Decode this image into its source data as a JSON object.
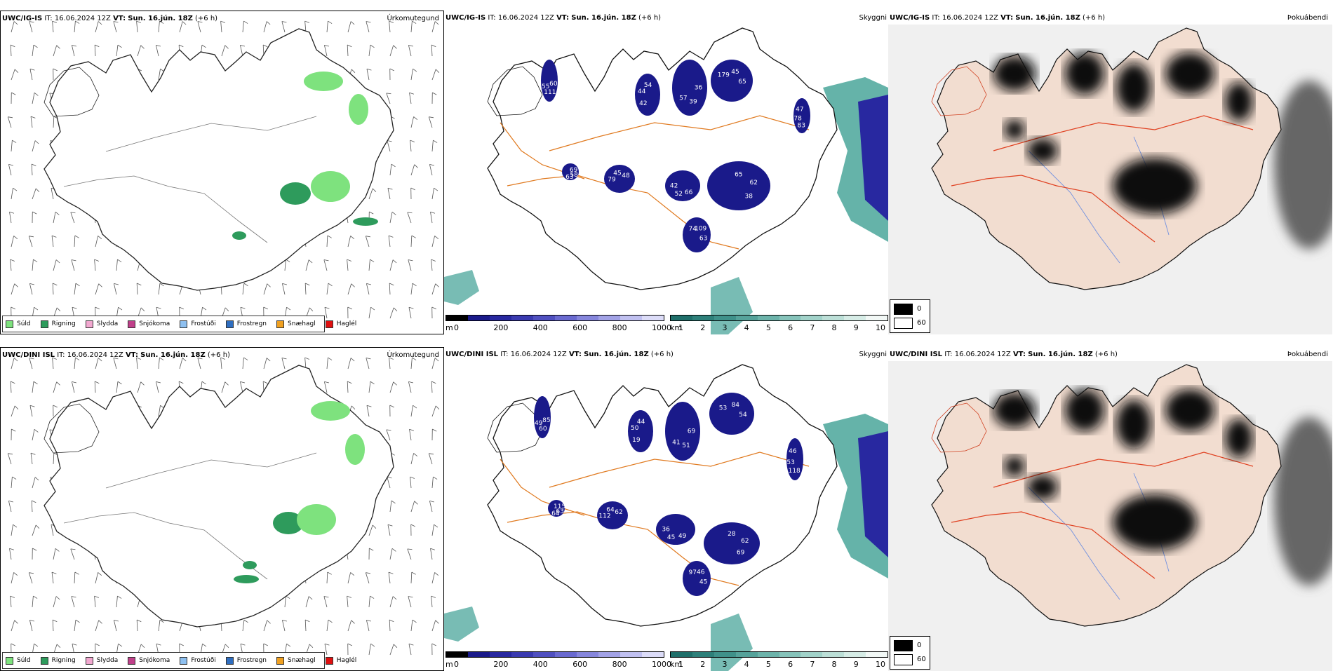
{
  "rows": [
    {
      "model": "UWC/IG-IS",
      "it_label": "IT:",
      "it_value": "16.06.2024 12Z",
      "vt_label": "VT:",
      "vt_value": "Sun. 16.jún. 18Z",
      "lead": "(+6 h)"
    },
    {
      "model": "UWC/DINI ISL",
      "it_label": "IT:",
      "it_value": "16.06.2024 12Z",
      "vt_label": "VT:",
      "vt_value": "Sun. 16.jún. 18Z",
      "lead": "(+6 h)"
    }
  ],
  "panels": {
    "precip_type": {
      "title": "Úrkomutegund",
      "legend": [
        {
          "label": "Súld",
          "color": "#7ee27e"
        },
        {
          "label": "Rigning",
          "color": "#2e9b5c"
        },
        {
          "label": "Slydda",
          "color": "#f2a8d0"
        },
        {
          "label": "Snjókoma",
          "color": "#c0408a"
        },
        {
          "label": "Frostúði",
          "color": "#8ec0f0"
        },
        {
          "label": "Frostregn",
          "color": "#2f6ec0"
        },
        {
          "label": "Snæhagl",
          "color": "#f0a020"
        },
        {
          "label": "Haglél",
          "color": "#e01010"
        }
      ]
    },
    "cloud_base": {
      "title": "Skyggni",
      "ceiling_unit": "m",
      "ceiling_ticks": [
        "0",
        "200",
        "400",
        "600",
        "800",
        "1000"
      ],
      "ceiling_colors": [
        "#000000",
        "#1a1a8a",
        "#2828a0",
        "#3a3ab0",
        "#5050c0",
        "#6a6ad0",
        "#8686dc",
        "#a2a2e6",
        "#c0c0f0",
        "#dcdcf8"
      ],
      "vis_unit": "km",
      "vis_ticks": [
        "1",
        "2",
        "3",
        "4",
        "5",
        "6",
        "7",
        "8",
        "9",
        "10"
      ],
      "vis_colors": [
        "#1f6f6a",
        "#2e807a",
        "#3f918a",
        "#55a29a",
        "#6cb3aa",
        "#86c3ba",
        "#a1d2c9",
        "#bcdfd7",
        "#d6ece6",
        "#f2f8f6"
      ],
      "labels_top": [
        "65",
        "57",
        "54",
        "38",
        "42",
        "48",
        "63",
        "47",
        "63",
        "55",
        "45",
        "39",
        "44",
        "62",
        "52",
        "45",
        "58",
        "78",
        "109",
        "111",
        "179",
        "36",
        "42",
        "65",
        "66",
        "79",
        "69",
        "83",
        "74",
        "60"
      ],
      "labels_bottom": [
        "54",
        "41",
        "44",
        "69",
        "36",
        "62",
        "64",
        "46",
        "45",
        "49",
        "84",
        "51",
        "50",
        "62",
        "45",
        "64",
        "63",
        "53",
        "46",
        "60",
        "53",
        "69",
        "19",
        "28",
        "49",
        "112",
        "115",
        "118",
        "97",
        "85"
      ]
    },
    "fog": {
      "title": "Þokuábendi",
      "legend_values": [
        "0",
        "60"
      ]
    }
  }
}
